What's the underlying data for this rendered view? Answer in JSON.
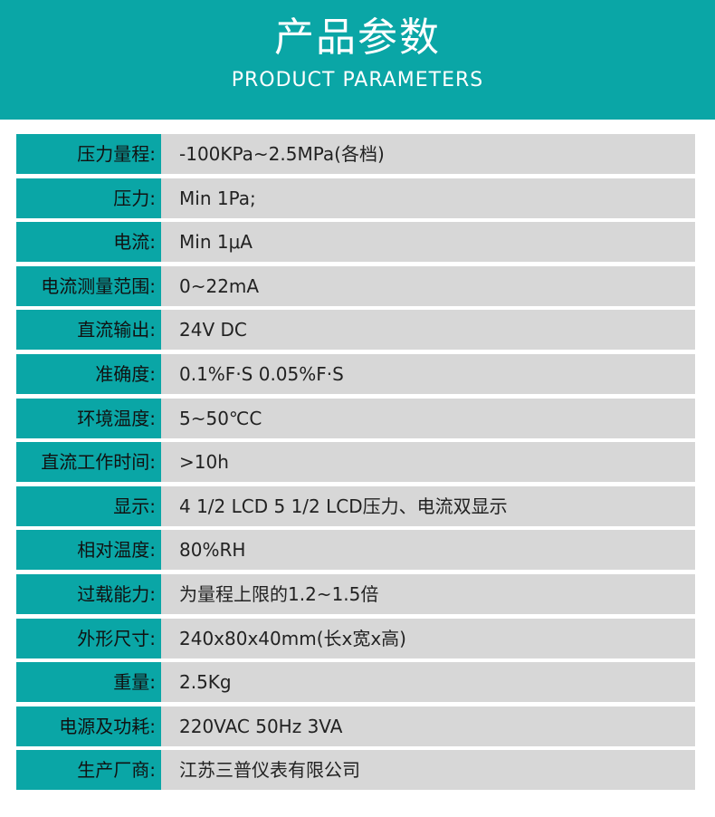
{
  "header": {
    "title": "产品参数",
    "subtitle": "PRODUCT PARAMETERS"
  },
  "colors": {
    "accent": "#0aa6a6",
    "row_bg": "#d7d7d7"
  },
  "rows": [
    {
      "label": "压力量程:",
      "value": "-100KPa~2.5MPa(各档)"
    },
    {
      "label": "压力:",
      "value": "Min 1Pa;"
    },
    {
      "label": "电流:",
      "value": "Min 1μA"
    },
    {
      "label": "电流测量范围:",
      "value": "0~22mA"
    },
    {
      "label": "直流输出:",
      "value": "24V DC"
    },
    {
      "label": "准确度:",
      "value": "0.1%F·S 0.05%F·S"
    },
    {
      "label": "环境温度:",
      "value": "5~50℃C"
    },
    {
      "label": "直流工作时间:",
      "value": ">10h"
    },
    {
      "label": "显示:",
      "value": "4 1/2 LCD 5 1/2 LCD压力、电流双显示"
    },
    {
      "label": "相对温度:",
      "value": "80%RH"
    },
    {
      "label": "过载能力:",
      "value": "为量程上限的1.2~1.5倍"
    },
    {
      "label": "外形尺寸:",
      "value": "240x80x40mm(长x宽x高)"
    },
    {
      "label": "重量:",
      "value": "2.5Kg"
    },
    {
      "label": "电源及功耗:",
      "value": "220VAC 50Hz 3VA"
    },
    {
      "label": "生产厂商:",
      "value": "江苏三普仪表有限公司"
    }
  ]
}
